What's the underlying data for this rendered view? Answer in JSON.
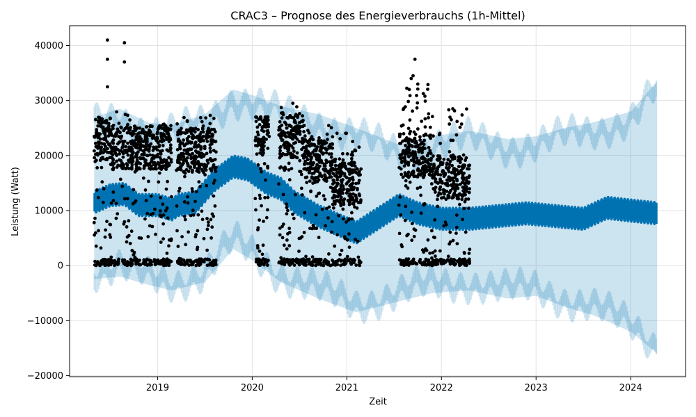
{
  "chart_data": {
    "type": "line",
    "title": "CRAC3 – Prognose des Energieverbrauchs (1h-Mittel)",
    "xlabel": "Zeit",
    "ylabel": "Leistung (Watt)",
    "xlim": [
      2018.07,
      2024.58
    ],
    "ylim": [
      -20200,
      43600
    ],
    "x_ticks": [
      2019,
      2020,
      2021,
      2022,
      2023,
      2024
    ],
    "y_ticks": [
      -20000,
      -10000,
      0,
      10000,
      20000,
      30000,
      40000
    ],
    "y_tick_labels": [
      "−20000",
      "−10000",
      "0",
      "10000",
      "20000",
      "30000",
      "40000"
    ],
    "grid": true,
    "colors": {
      "forecast_line": "#0072b2",
      "uncertainty_band": "#0072b2",
      "observations": "#000000"
    },
    "series": [
      {
        "name": "yhat",
        "kind": "line",
        "x": [
          2018.33,
          2018.5,
          2018.65,
          2018.8,
          2019.0,
          2019.15,
          2019.22,
          2019.4,
          2019.6,
          2019.8,
          2019.95,
          2020.15,
          2020.3,
          2020.45,
          2020.7,
          2020.9,
          2021.1,
          2021.55,
          2021.75,
          2022.0,
          2022.3,
          2022.6,
          2022.9,
          2023.2,
          2023.5,
          2023.75,
          2024.0,
          2024.28
        ],
        "y": [
          11500,
          12800,
          13000,
          11000,
          11000,
          10200,
          11000,
          11500,
          15500,
          18000,
          17500,
          15000,
          14000,
          11500,
          9000,
          7500,
          6000,
          11000,
          9500,
          8500,
          8500,
          9000,
          9500,
          9000,
          8500,
          10500,
          10000,
          9500
        ],
        "spread": [
          1500,
          1500,
          1500,
          1500,
          1500,
          1500,
          1500,
          1500,
          1500,
          1500,
          1500,
          1500,
          1500,
          1500,
          1500,
          1500,
          1500,
          1500,
          1500,
          1500,
          1500,
          1500,
          1500,
          1500,
          1500,
          1500,
          1500,
          1500
        ]
      },
      {
        "name": "yhat_upper",
        "kind": "band_upper",
        "x": [
          2018.33,
          2018.6,
          2018.9,
          2019.15,
          2019.5,
          2019.8,
          2020.0,
          2020.3,
          2020.7,
          2021.1,
          2021.55,
          2021.9,
          2022.3,
          2022.7,
          2023.0,
          2023.3,
          2023.6,
          2024.0,
          2024.28
        ],
        "y": [
          27000,
          28500,
          26000,
          25500,
          27500,
          32000,
          31000,
          29000,
          27500,
          25000,
          22000,
          23500,
          24500,
          23000,
          23500,
          25000,
          26000,
          28000,
          33500
        ]
      },
      {
        "name": "yhat_lower",
        "kind": "band_lower",
        "x": [
          2018.33,
          2018.6,
          2018.9,
          2019.15,
          2019.5,
          2019.8,
          2020.0,
          2020.3,
          2020.7,
          2021.1,
          2021.55,
          2021.9,
          2022.3,
          2022.7,
          2023.0,
          2023.3,
          2023.6,
          2024.0,
          2024.28
        ],
        "y": [
          -2500,
          -2000,
          -3500,
          -4500,
          -3000,
          3000,
          1000,
          -3000,
          -6000,
          -8500,
          -6500,
          -5000,
          -4500,
          -6000,
          -5500,
          -7500,
          -9000,
          -12000,
          -16000
        ]
      },
      {
        "name": "y",
        "kind": "scatter",
        "segments": [
          {
            "x": [
              2018.33,
              2018.52
            ],
            "low": 0,
            "high": 27000,
            "center": 23000
          },
          {
            "x": [
              2018.52,
              2018.82
            ],
            "low": 0,
            "high": 28000,
            "center": 21500
          },
          {
            "x": [
              2018.82,
              2019.15
            ],
            "low": 0,
            "high": 26000,
            "center": 21500
          },
          {
            "x": [
              2019.2,
              2019.62
            ],
            "low": 0,
            "high": 27500,
            "center": 21000
          },
          {
            "x": [
              2020.03,
              2020.18
            ],
            "low": 0,
            "high": 27000,
            "center": 24000
          },
          {
            "x": [
              2020.28,
              2020.55
            ],
            "low": 0,
            "high": 29500,
            "center": 23500
          },
          {
            "x": [
              2020.55,
              2020.85
            ],
            "low": 0,
            "high": 26000,
            "center": 19000
          },
          {
            "x": [
              2020.85,
              2021.15
            ],
            "low": 0,
            "high": 25000,
            "center": 15000
          },
          {
            "x": [
              2021.55,
              2021.9
            ],
            "low": 0,
            "high": 34000,
            "center": 20000
          },
          {
            "x": [
              2021.9,
              2022.3
            ],
            "low": 0,
            "high": 28500,
            "center": 16000
          }
        ],
        "outliers": [
          {
            "x": 2018.47,
            "y": 41000
          },
          {
            "x": 2018.47,
            "y": 37500
          },
          {
            "x": 2018.47,
            "y": 32500
          },
          {
            "x": 2018.65,
            "y": 40500
          },
          {
            "x": 2018.65,
            "y": 37000
          },
          {
            "x": 2021.72,
            "y": 37500
          },
          {
            "x": 2021.7,
            "y": 34500
          },
          {
            "x": 2021.68,
            "y": 34000
          },
          {
            "x": 2021.75,
            "y": 33000
          },
          {
            "x": 2021.66,
            "y": 32000
          },
          {
            "x": 2022.12,
            "y": 28500
          },
          {
            "x": 2020.43,
            "y": 29500
          }
        ]
      }
    ]
  }
}
